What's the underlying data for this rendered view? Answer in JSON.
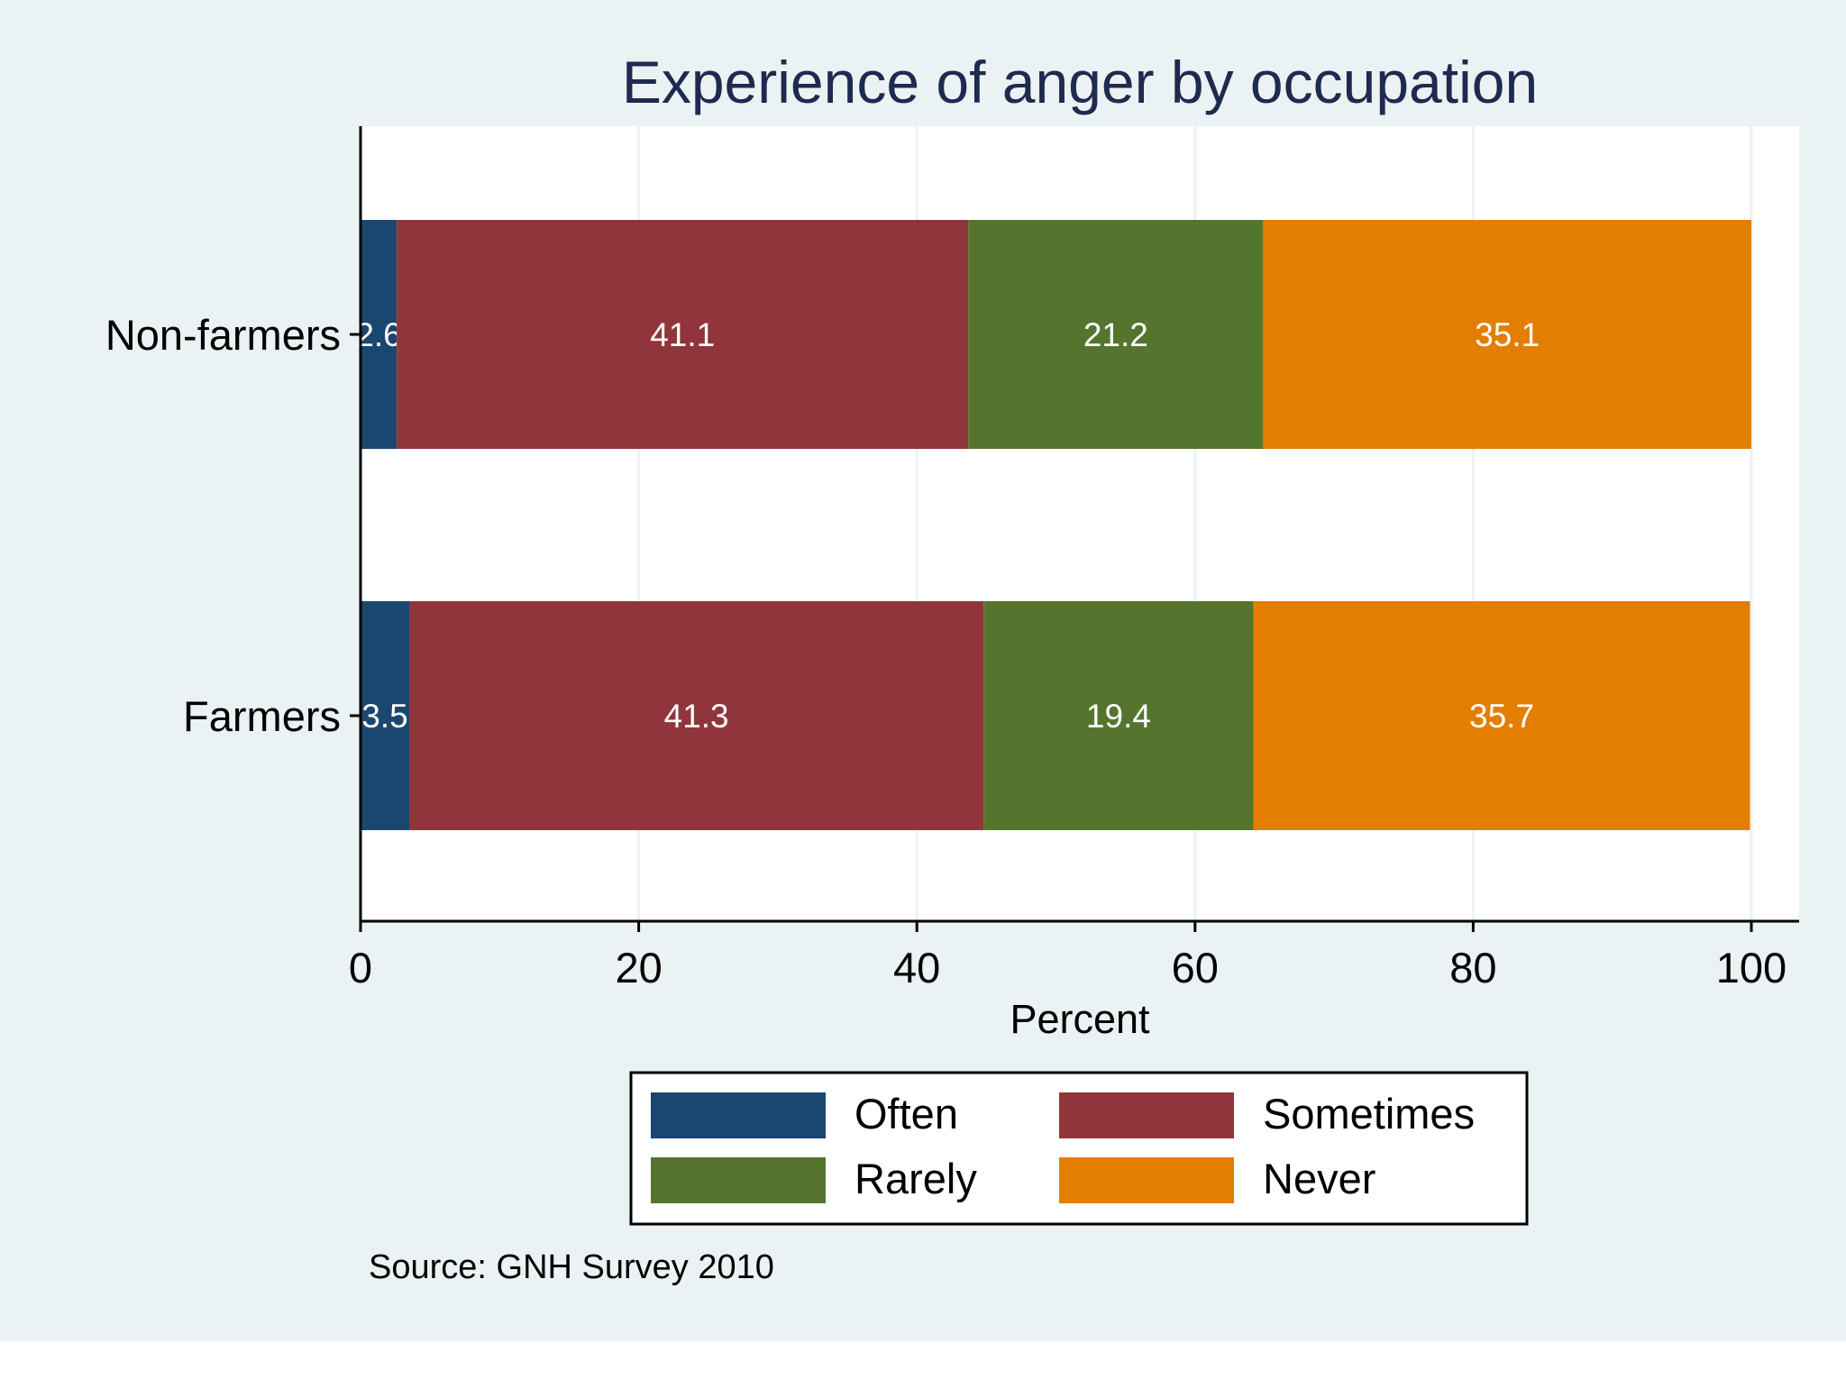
{
  "chart_data": {
    "type": "bar",
    "orientation": "horizontal",
    "stacked": true,
    "title": "Experience of anger by occupation",
    "xlabel": "Percent",
    "ylabel": "",
    "xlim": [
      0,
      100
    ],
    "xticks": [
      "0",
      "20",
      "40",
      "60",
      "80",
      "100"
    ],
    "categories": [
      "Non-farmers",
      "Farmers"
    ],
    "series": [
      {
        "name": "Often",
        "color": "#1a476f",
        "values": [
          2.6,
          3.5
        ],
        "labels": [
          "2.6",
          "3.5"
        ]
      },
      {
        "name": "Sometimes",
        "color": "#90353b",
        "values": [
          41.1,
          41.3
        ],
        "labels": [
          "41.1",
          "41.3"
        ]
      },
      {
        "name": "Rarely",
        "color": "#55752f",
        "values": [
          21.2,
          19.4
        ],
        "labels": [
          "21.2",
          "19.4"
        ]
      },
      {
        "name": "Never",
        "color": "#e37e00",
        "values": [
          35.1,
          35.7
        ],
        "labels": [
          "35.1",
          "35.7"
        ]
      }
    ],
    "grid": true,
    "legend_position": "bottom",
    "note": "Source: GNH Survey 2010"
  },
  "colors": {
    "page_background": "#eaf2f3",
    "plot_background": "#ffffff",
    "title": "#1e2a4f",
    "text": "#000000",
    "gridline": "#eaf2f3",
    "bar_label": "#ffffff"
  }
}
